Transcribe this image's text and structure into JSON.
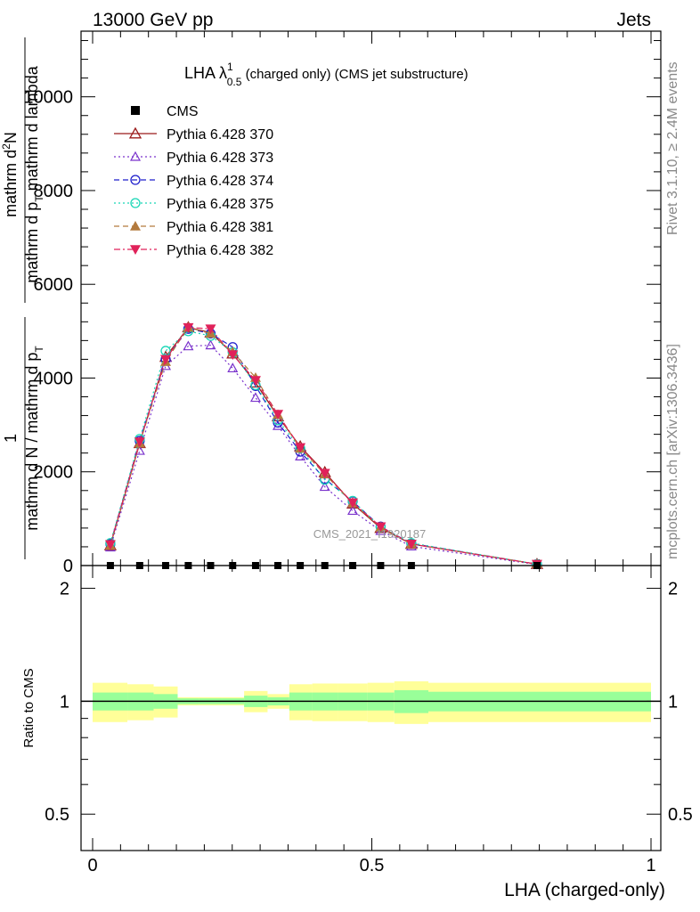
{
  "header": {
    "left": "13000 GeV pp",
    "right": "Jets"
  },
  "side_labels": {
    "rivet": "Rivet 3.1.10, ≥ 2.4M events",
    "mcplots": "mcplots.cern.ch [arXiv:1306.3436]"
  },
  "watermark": "CMS_2021_I1920187",
  "main_title": {
    "main": "LHA λ",
    "sup": "1",
    "sub": "0.5",
    "rest": " (charged only) (CMS jet substructure)"
  },
  "y_label": {
    "numerator": "1",
    "denominator": "mathrm d N / mathrm d p",
    "denominator_sub": "T",
    "right_numerator": "mathrm d",
    "right_numerator_sup": "2",
    "right_numerator_tail": "N",
    "right_denominator": "mathrm d p",
    "right_denominator_sub": "T",
    "right_denominator_tail": " mathrm d lambda"
  },
  "ratio_ylabel": "Ratio to CMS",
  "x_label": "LHA (charged-only)",
  "colors": {
    "band_inner": "#99ff99",
    "band_outer": "#ffff99",
    "s370": "#9b1b1b",
    "s373": "#7a33cc",
    "s374": "#1f1fcc",
    "s375": "#19d6b6",
    "s381": "#b37a3d",
    "s382": "#e0225a"
  },
  "chart_data": {
    "type": "line",
    "xlim": [
      0,
      1
    ],
    "ylim_main": [
      0,
      11400
    ],
    "ylim_ratio": [
      0.4,
      2.3
    ],
    "ratio_log_scale": true,
    "x_ticks": [
      "0",
      "0.5",
      "1"
    ],
    "y_ticks_main": [
      "0",
      "2000",
      "4000",
      "6000",
      "8000",
      "10000"
    ],
    "y_ticks_ratio": [
      "0.5",
      "1",
      "2"
    ],
    "legend": [
      "CMS",
      "Pythia 6.428 370",
      "Pythia 6.428 373",
      "Pythia 6.428 374",
      "Pythia 6.428 375",
      "Pythia 6.428 381",
      "Pythia 6.428 382"
    ],
    "legend_position": "top-left",
    "x": [
      0.0318,
      0.0843,
      0.1308,
      0.1713,
      0.2113,
      0.2508,
      0.2918,
      0.3318,
      0.3718,
      0.4158,
      0.4658,
      0.5158,
      0.5708,
      0.7958
    ],
    "bin_edges": [
      0.0,
      0.0623,
      0.1093,
      0.1523,
      0.1913,
      0.2313,
      0.2713,
      0.3133,
      0.3523,
      0.3933,
      0.4393,
      0.4923,
      0.5403,
      0.6013,
      1.0
    ],
    "cms_values": [
      0,
      0,
      0,
      0,
      0,
      0,
      0,
      0,
      0,
      0,
      0,
      0,
      0,
      0
    ],
    "ratio_band_inner": [
      0.055,
      0.055,
      0.045,
      0.018,
      0.018,
      0.018,
      0.035,
      0.025,
      0.055,
      0.055,
      0.055,
      0.055,
      0.07,
      0.06
    ],
    "ratio_band_outer": [
      0.12,
      0.11,
      0.095,
      0.025,
      0.025,
      0.025,
      0.065,
      0.045,
      0.11,
      0.115,
      0.115,
      0.12,
      0.13,
      0.12
    ],
    "series": [
      {
        "name": "Pythia 6.428 370",
        "marker": "triangle-open",
        "dash": "solid",
        "values": [
          430,
          2610,
          4450,
          5080,
          4970,
          4520,
          3900,
          3180,
          2540,
          1990,
          1320,
          800,
          460,
          30
        ]
      },
      {
        "name": "Pythia 6.428 373",
        "marker": "triangle-open-small",
        "dash": "dot",
        "values": [
          390,
          2450,
          4260,
          4680,
          4700,
          4210,
          3580,
          2980,
          2330,
          1680,
          1170,
          740,
          410,
          22
        ]
      },
      {
        "name": "Pythia 6.428 374",
        "marker": "circle-open",
        "dash": "dash",
        "values": [
          460,
          2660,
          4400,
          5050,
          4950,
          4660,
          3830,
          3050,
          2430,
          1850,
          1370,
          830,
          470,
          30
        ]
      },
      {
        "name": "Pythia 6.428 375",
        "marker": "circle-open",
        "dash": "dot",
        "values": [
          480,
          2700,
          4580,
          5000,
          4900,
          4550,
          3850,
          3100,
          2500,
          1830,
          1380,
          820,
          480,
          30
        ]
      },
      {
        "name": "Pythia 6.428 381",
        "marker": "triangle-filled",
        "dash": "dash",
        "values": [
          430,
          2610,
          4350,
          5080,
          4950,
          4560,
          4010,
          3220,
          2500,
          1950,
          1330,
          820,
          460,
          30
        ]
      },
      {
        "name": "Pythia 6.428 382",
        "marker": "triangle-down-filled",
        "dash": "dashdot",
        "values": [
          450,
          2640,
          4400,
          5080,
          5050,
          4500,
          3950,
          3230,
          2520,
          1970,
          1340,
          830,
          460,
          30
        ]
      }
    ]
  }
}
